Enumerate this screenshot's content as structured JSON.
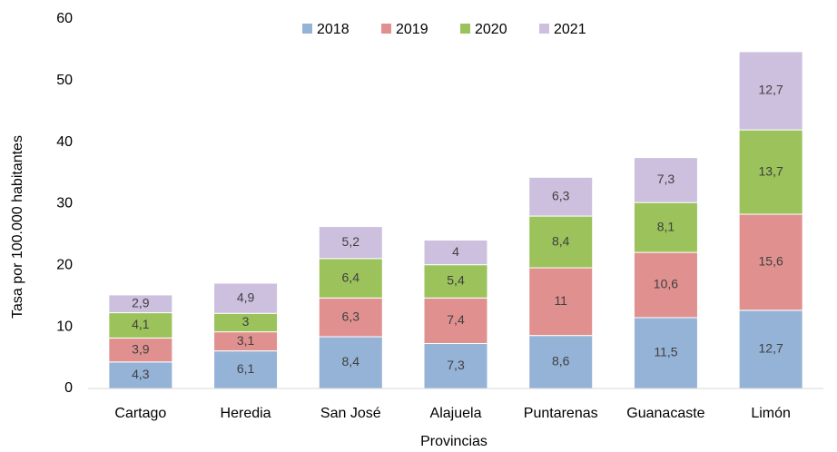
{
  "chart_data": {
    "type": "stacked_bar",
    "x_label": "Provincias",
    "y_label": "Tasa por 100.000 habitantes",
    "categories": [
      "Cartago",
      "Heredia",
      "San José",
      "Alajuela",
      "Puntarenas",
      "Guanacaste",
      "Limón"
    ],
    "series": [
      {
        "name": "2018",
        "color": "#95b3d7",
        "values": [
          4.3,
          6.1,
          8.4,
          7.3,
          8.6,
          11.5,
          12.7
        ],
        "value_labels": [
          "4,3",
          "6,1",
          "8,4",
          "7,3",
          "8,6",
          "11,5",
          "12,7"
        ]
      },
      {
        "name": "2019",
        "color": "#e0918f",
        "values": [
          3.9,
          3.1,
          6.3,
          7.4,
          11,
          10.6,
          15.6
        ],
        "value_labels": [
          "3,9",
          "3,1",
          "6,3",
          "7,4",
          "11",
          "10,6",
          "15,6"
        ]
      },
      {
        "name": "2020",
        "color": "#9bc25b",
        "values": [
          4.1,
          3,
          6.4,
          5.4,
          8.4,
          8.1,
          13.7
        ],
        "value_labels": [
          "4,1",
          "3",
          "6,4",
          "5,4",
          "8,4",
          "8,1",
          "13,7"
        ]
      },
      {
        "name": "2021",
        "color": "#ccc0de",
        "values": [
          2.9,
          4.9,
          5.2,
          4,
          6.3,
          7.3,
          12.7
        ],
        "value_labels": [
          "2,9",
          "4,9",
          "5,2",
          "4",
          "6,3",
          "7,3",
          "12,7"
        ]
      }
    ],
    "ylim": [
      0,
      60
    ],
    "yticks": [
      0,
      10,
      20,
      30,
      40,
      50,
      60
    ],
    "grid": false,
    "legend": "top"
  }
}
